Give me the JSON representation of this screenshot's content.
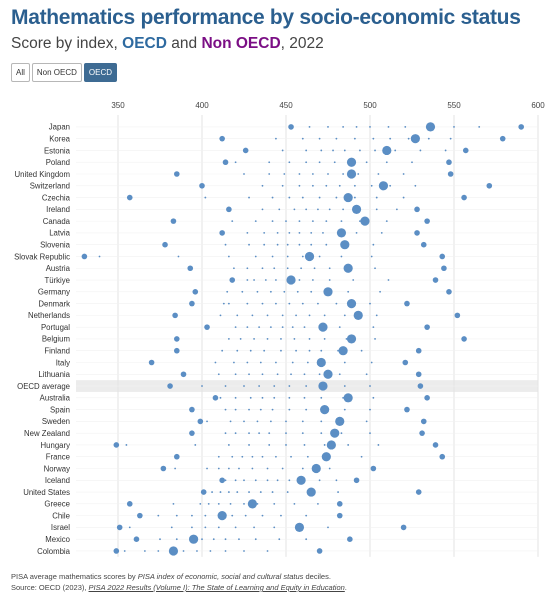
{
  "header": {
    "title": "Mathematics performance by socio-economic status",
    "subtitle_prefix": "Score by index, ",
    "subtitle_oecd": "OECD",
    "subtitle_and": " and ",
    "subtitle_non_oecd": "Non OECD",
    "subtitle_suffix": ", 2022"
  },
  "filters": [
    {
      "label": "All",
      "active": false
    },
    {
      "label": "Non OECD",
      "active": false
    },
    {
      "label": "OECD",
      "active": true
    }
  ],
  "footer": {
    "note_prefix": "PISA average mathematics scores by ",
    "note_italic": "PISA index of economic, social and cultural status",
    "note_suffix": " deciles.",
    "source_prefix": "Source: OECD (2023), ",
    "source_italic": "PISA 2022 Results (Volume I): The State of Learning and Equity in Education",
    "source_suffix": "."
  },
  "colors": {
    "dot": "#5b8ec4",
    "title": "#2b5f8f",
    "oecd": "#2e6aa0",
    "non_oecd": "#7b0f85",
    "highlight_row": "#ececec"
  },
  "chart_data": {
    "type": "scatter",
    "x_ticks": [
      350,
      400,
      450,
      500,
      550,
      600
    ],
    "xlim": [
      320,
      600
    ],
    "grid": "vertical",
    "highlight_country": "OECD average",
    "rows": [
      {
        "country": "Japan",
        "avg": 536,
        "deciles": [
          453,
          464,
          475,
          484,
          492,
          500,
          511,
          521,
          535,
          550,
          565,
          590
        ]
      },
      {
        "country": "Korea",
        "avg": 527,
        "deciles": [
          412,
          444,
          460,
          470,
          480,
          491,
          502,
          512,
          523,
          535,
          548,
          579
        ]
      },
      {
        "country": "Estonia",
        "avg": 510,
        "deciles": [
          426,
          448,
          462,
          471,
          478,
          485,
          494,
          503,
          515,
          530,
          545,
          557
        ]
      },
      {
        "country": "Poland",
        "avg": 489,
        "deciles": [
          414,
          420,
          440,
          452,
          462,
          470,
          479,
          488,
          498,
          510,
          525,
          547
        ]
      },
      {
        "country": "United Kingdom",
        "avg": 489,
        "deciles": [
          385,
          425,
          440,
          449,
          458,
          466,
          475,
          484,
          493,
          505,
          520,
          548
        ]
      },
      {
        "country": "Switzerland",
        "avg": 508,
        "deciles": [
          400,
          436,
          448,
          458,
          466,
          474,
          482,
          491,
          501,
          512,
          527,
          571
        ]
      },
      {
        "country": "Czechia",
        "avg": 487,
        "deciles": [
          357,
          402,
          428,
          442,
          452,
          460,
          470,
          480,
          491,
          504,
          520,
          556
        ]
      },
      {
        "country": "Ireland",
        "avg": 492,
        "deciles": [
          416,
          436,
          446,
          455,
          462,
          469,
          476,
          484,
          493,
          504,
          516,
          528
        ]
      },
      {
        "country": "Canada",
        "avg": 497,
        "deciles": [
          383,
          418,
          432,
          442,
          450,
          458,
          466,
          474,
          483,
          494,
          510,
          534
        ]
      },
      {
        "country": "Latvia",
        "avg": 483,
        "deciles": [
          412,
          427,
          437,
          445,
          452,
          458,
          465,
          472,
          481,
          492,
          507,
          528
        ]
      },
      {
        "country": "Slovenia",
        "avg": 485,
        "deciles": [
          378,
          414,
          428,
          437,
          445,
          451,
          458,
          465,
          474,
          486,
          502,
          532
        ]
      },
      {
        "country": "Slovak Republic",
        "avg": 464,
        "deciles": [
          330,
          339,
          386,
          416,
          432,
          442,
          451,
          460,
          470,
          483,
          501,
          543
        ]
      },
      {
        "country": "Austria",
        "avg": 487,
        "deciles": [
          393,
          419,
          427,
          436,
          443,
          451,
          459,
          467,
          476,
          489,
          503,
          544
        ]
      },
      {
        "country": "Türkiye",
        "avg": 453,
        "deciles": [
          418,
          427,
          431,
          438,
          444,
          451,
          458,
          466,
          476,
          490,
          511,
          539
        ]
      },
      {
        "country": "Germany",
        "avg": 475,
        "deciles": [
          396,
          415,
          424,
          433,
          441,
          449,
          457,
          465,
          474,
          487,
          506,
          547
        ]
      },
      {
        "country": "Denmark",
        "avg": 489,
        "deciles": [
          394,
          413,
          416,
          427,
          436,
          444,
          452,
          460,
          469,
          480,
          500,
          522
        ]
      },
      {
        "country": "Netherlands",
        "avg": 493,
        "deciles": [
          384,
          411,
          421,
          430,
          439,
          448,
          456,
          464,
          473,
          485,
          504,
          552
        ]
      },
      {
        "country": "Portugal",
        "avg": 472,
        "deciles": [
          403,
          420,
          427,
          434,
          441,
          448,
          454,
          461,
          470,
          482,
          502,
          534
        ]
      },
      {
        "country": "Belgium",
        "avg": 489,
        "deciles": [
          385,
          416,
          423,
          431,
          439,
          447,
          455,
          464,
          473,
          486,
          503,
          556
        ]
      },
      {
        "country": "Finland",
        "avg": 484,
        "deciles": [
          385,
          412,
          421,
          429,
          437,
          447,
          456,
          464,
          471,
          481,
          495,
          529
        ]
      },
      {
        "country": "Italy",
        "avg": 471,
        "deciles": [
          370,
          408,
          419,
          427,
          435,
          444,
          454,
          463,
          473,
          485,
          501,
          521
        ]
      },
      {
        "country": "Lithuania",
        "avg": 475,
        "deciles": [
          389,
          410,
          420,
          428,
          436,
          445,
          453,
          461,
          470,
          482,
          498,
          529
        ]
      },
      {
        "country": "OECD average",
        "avg": 472,
        "deciles": [
          381,
          400,
          414,
          425,
          434,
          443,
          452,
          462,
          473,
          485,
          500,
          530
        ]
      },
      {
        "country": "Australia",
        "avg": 487,
        "deciles": [
          408,
          411,
          420,
          429,
          436,
          443,
          452,
          461,
          471,
          484,
          502,
          534
        ]
      },
      {
        "country": "Spain",
        "avg": 473,
        "deciles": [
          394,
          414,
          420,
          428,
          435,
          442,
          452,
          462,
          473,
          485,
          500,
          522
        ]
      },
      {
        "country": "Sweden",
        "avg": 482,
        "deciles": [
          399,
          403,
          417,
          425,
          433,
          441,
          450,
          460,
          471,
          483,
          498,
          532
        ]
      },
      {
        "country": "New Zealand",
        "avg": 479,
        "deciles": [
          394,
          414,
          420,
          428,
          434,
          440,
          450,
          460,
          471,
          483,
          500,
          531
        ]
      },
      {
        "country": "Hungary",
        "avg": 477,
        "deciles": [
          349,
          355,
          396,
          416,
          428,
          440,
          450,
          461,
          473,
          487,
          505,
          539
        ]
      },
      {
        "country": "France",
        "avg": 474,
        "deciles": [
          385,
          410,
          418,
          424,
          430,
          436,
          444,
          453,
          463,
          476,
          495,
          543
        ]
      },
      {
        "country": "Norway",
        "avg": 468,
        "deciles": [
          377,
          384,
          403,
          410,
          416,
          422,
          430,
          439,
          448,
          460,
          476,
          502
        ]
      },
      {
        "country": "Iceland",
        "avg": 459,
        "deciles": [
          412,
          414,
          420,
          425,
          432,
          439,
          445,
          452,
          461,
          470,
          480,
          492
        ]
      },
      {
        "country": "United States",
        "avg": 465,
        "deciles": [
          401,
          406,
          411,
          416,
          421,
          428,
          435,
          442,
          451,
          463,
          481,
          529
        ]
      },
      {
        "country": "Greece",
        "avg": 430,
        "deciles": [
          357,
          383,
          399,
          404,
          410,
          417,
          425,
          433,
          443,
          455,
          469,
          482
        ]
      },
      {
        "country": "Chile",
        "avg": 412,
        "deciles": [
          363,
          374,
          385,
          394,
          402,
          410,
          418,
          426,
          436,
          447,
          462,
          482
        ]
      },
      {
        "country": "Israel",
        "avg": 458,
        "deciles": [
          351,
          357,
          382,
          394,
          402,
          410,
          420,
          431,
          443,
          458,
          475,
          520
        ]
      },
      {
        "country": "Mexico",
        "avg": 395,
        "deciles": [
          361,
          375,
          385,
          393,
          400,
          407,
          414,
          422,
          432,
          446,
          462,
          488
        ]
      },
      {
        "country": "Colombia",
        "avg": 383,
        "deciles": [
          349,
          354,
          366,
          374,
          382,
          389,
          397,
          405,
          414,
          425,
          439,
          470
        ]
      }
    ]
  }
}
